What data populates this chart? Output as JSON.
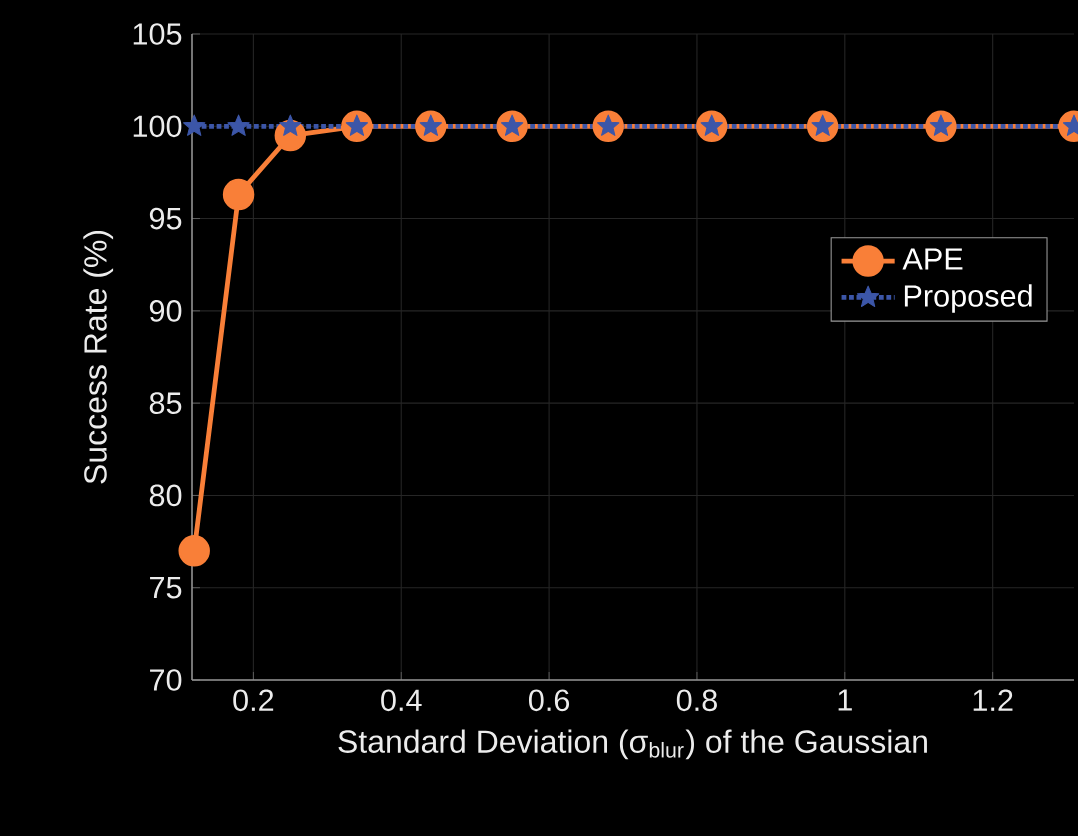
{
  "chart_data": {
    "type": "line",
    "xlabel": "Standard Deviation (σ$_{blur}$) of the Gaussian",
    "ylabel": "Success Rate (%)",
    "x": [
      0.12,
      0.18,
      0.25,
      0.34,
      0.44,
      0.55,
      0.68,
      0.82,
      0.97,
      1.13,
      1.31
    ],
    "series": [
      {
        "name": "APE",
        "color": "#f97f38",
        "marker": "circle",
        "line_style": "solid",
        "values": [
          77.0,
          96.3,
          99.5,
          100,
          100,
          100,
          100,
          100,
          100,
          100,
          100
        ]
      },
      {
        "name": "Proposed",
        "color": "#3c56a8",
        "marker": "star",
        "line_style": "dotted",
        "values": [
          100,
          100,
          100,
          100,
          100,
          100,
          100,
          100,
          100,
          100,
          100
        ]
      }
    ],
    "xlim": [
      0.117,
      1.31
    ],
    "ylim": [
      70,
      105
    ],
    "xticks": [
      0.2,
      0.4,
      0.6,
      0.8,
      1,
      1.2
    ],
    "yticks": [
      70,
      75,
      80,
      85,
      90,
      95,
      100,
      105
    ],
    "grid": true,
    "legend": "right"
  }
}
